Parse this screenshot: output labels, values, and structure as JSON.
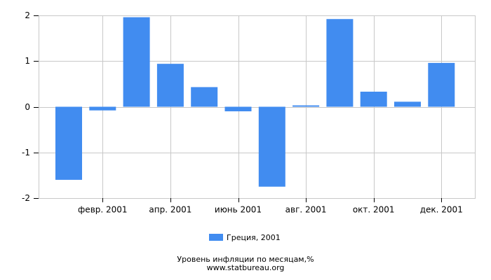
{
  "chart_data": {
    "type": "bar",
    "title": "Уровень инфляции по месяцам,%",
    "source": "www.statbureau.org",
    "categories": [
      null,
      "февр. 2001",
      null,
      "апр. 2001",
      null,
      "июнь 2001",
      null,
      "авг. 2001",
      null,
      "окт. 2001",
      null,
      "дек. 2001"
    ],
    "series": [
      {
        "name": "Греция, 2001",
        "color": "#418cf0",
        "values": [
          -1.6,
          -0.08,
          1.96,
          0.94,
          0.43,
          -0.1,
          -1.75,
          0.03,
          1.92,
          0.33,
          0.11,
          0.96
        ]
      }
    ],
    "ylim": [
      -2,
      2
    ],
    "yticks": [
      -2,
      -1,
      0,
      1,
      2
    ],
    "grid": true
  }
}
